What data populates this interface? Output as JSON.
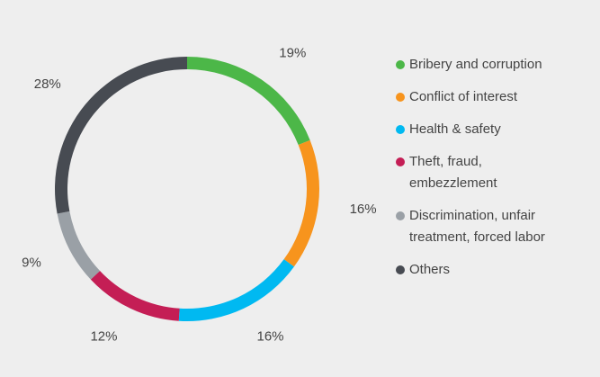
{
  "chart_data": {
    "type": "pie",
    "categories": [
      "Bribery and corruption",
      "Conflict of interest",
      "Health & safety",
      "Theft, fraud, embezzlement",
      "Discrimination, unfair treatment, forced labor",
      "Others"
    ],
    "values": [
      19,
      16,
      16,
      12,
      9,
      28
    ],
    "value_labels": [
      "19%",
      "16%",
      "16%",
      "12%",
      "9%",
      "28%"
    ],
    "colors": [
      "#4cb748",
      "#f7941d",
      "#00b9f1",
      "#c41e55",
      "#9aa0a6",
      "#474b52"
    ],
    "legend": "right"
  }
}
